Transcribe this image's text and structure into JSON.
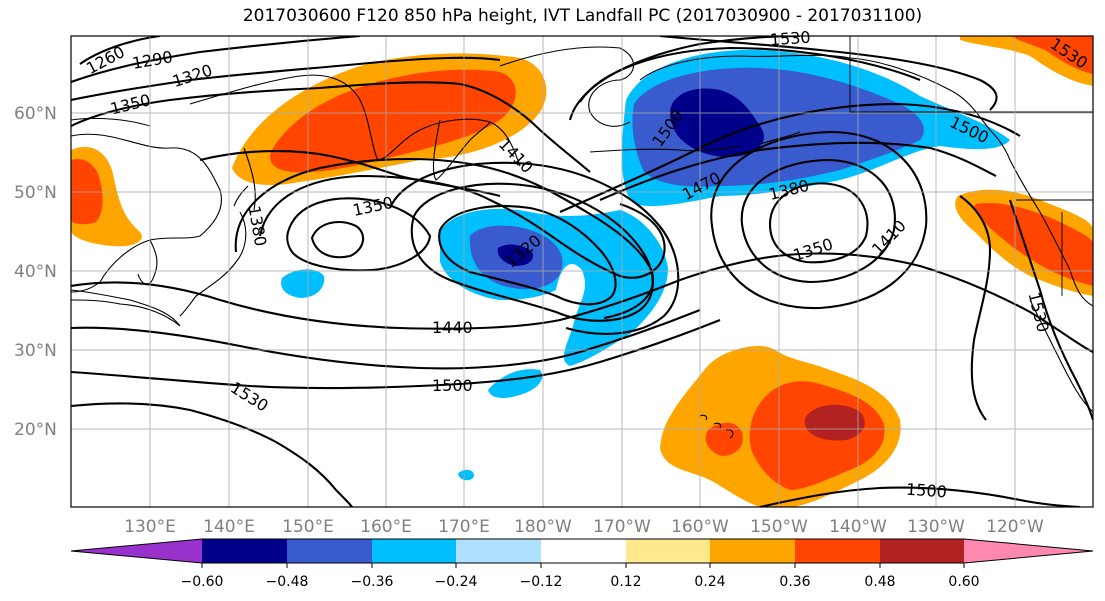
{
  "title": "2017030600 F120 850 hPa height, IVT Landfall PC (2017030900 - 2017031100)",
  "colors": {
    "neg_060": "#9932CC",
    "neg_048": "#00008B",
    "neg_036": "#3A5BCD",
    "neg_024": "#00BFFF",
    "neg_012": "#B0E0FF",
    "zero": "#FFFFFF",
    "pos_012": "#FFE98C",
    "pos_024": "#FFA500",
    "pos_036": "#FF4500",
    "pos_048": "#B22222",
    "pos_060": "#FF88B0"
  },
  "lat_labels": [
    "20°N",
    "30°N",
    "40°N",
    "50°N",
    "60°N"
  ],
  "lon_labels": [
    "130°E",
    "140°E",
    "150°E",
    "160°E",
    "170°E",
    "180°W",
    "170°W",
    "160°W",
    "150°W",
    "140°W",
    "130°W",
    "120°W"
  ],
  "colorbar": {
    "ticks": [
      "−0.60",
      "−0.48",
      "−0.36",
      "−0.24",
      "−0.12",
      "0.12",
      "0.24",
      "0.36",
      "0.48",
      "0.60"
    ]
  },
  "contour_labels": {
    "c1260": "1260",
    "c1290": "1290",
    "c1320a": "1320",
    "c1350a": "1350",
    "c1350b": "1350",
    "c1380a": "1380",
    "c1410a": "1410",
    "c1320b": "1320",
    "c1380b": "1380",
    "c1350c": "1350",
    "c1410b": "1410",
    "c1470": "1470",
    "c1500a": "1500",
    "c1530a": "1530",
    "c1440": "1440",
    "c1500b": "1500",
    "c1530b": "1530",
    "c1500c": "1500",
    "c1500d": "1500",
    "c1530c": "1530",
    "c1530d": "1530"
  }
}
